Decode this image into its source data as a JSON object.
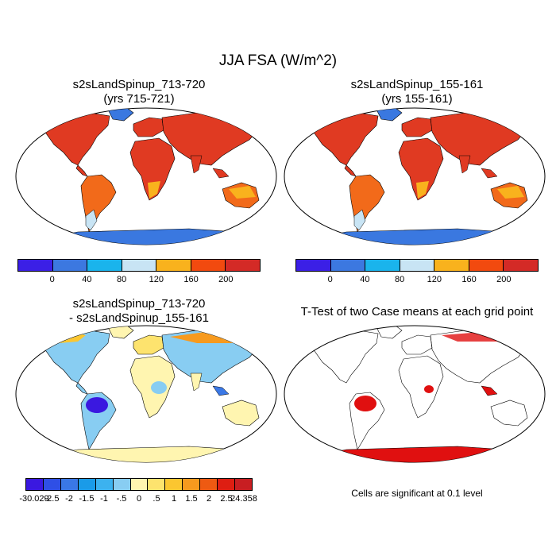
{
  "title": "JJA FSA (W/m^2)",
  "panels": [
    {
      "title_line1": "s2sLandSpinup_713-720",
      "title_line2": "(yrs 715-721)"
    },
    {
      "title_line1": "s2sLandSpinup_155-161",
      "title_line2": "(yrs 155-161)"
    },
    {
      "title_line1": "s2sLandSpinup_713-720",
      "title_line2": "- s2sLandSpinup_155-161"
    },
    {
      "title_line1": "T-Test of two Case means at each grid point",
      "title_line2": ""
    }
  ],
  "colorbar_main": {
    "colors": [
      "#3b1fe6",
      "#3c78e0",
      "#1ab4ec",
      "#c8e4f4",
      "#f9b21d",
      "#f24a0f",
      "#d42a26"
    ],
    "labels": [
      "0",
      "40",
      "80",
      "120",
      "160",
      "200"
    ]
  },
  "colorbar_diff": {
    "colors": [
      "#3a18e0",
      "#2f4fe6",
      "#3a78e6",
      "#1a9be8",
      "#3cb2ef",
      "#88cdf2",
      "#fff5b0",
      "#fde36e",
      "#fbc630",
      "#f79a1e",
      "#ee5a12",
      "#de1e12",
      "#c81e22"
    ],
    "labels": [
      "-30.029",
      "-2.5",
      "-2",
      "-1.5",
      "-1",
      "-.5",
      "0",
      ".5",
      "1",
      "1.5",
      "2",
      "2.5",
      "24.358"
    ]
  },
  "significance_note": "Cells are significant at 0.1 level",
  "colors": {
    "land_hot": "#e03a22",
    "land_mid": "#f26a1a",
    "antarctica": "#3a78e0",
    "significant": "#e01010"
  }
}
